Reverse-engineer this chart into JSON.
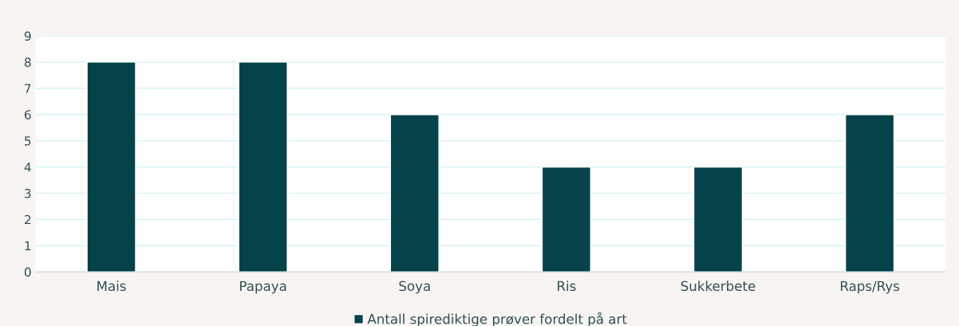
{
  "chart_data": {
    "type": "bar",
    "categories": [
      "Mais",
      "Papaya",
      "Soya",
      "Ris",
      "Sukkerbete",
      "Raps/Rys"
    ],
    "series": [
      {
        "name": "Antall spirediktige prøver fordelt på art",
        "color": "#06424a",
        "values": [
          8,
          8,
          6,
          4,
          4,
          6
        ]
      }
    ],
    "ylim": [
      0,
      9
    ],
    "yticks": [
      0,
      1,
      2,
      3,
      4,
      5,
      6,
      7,
      8,
      9
    ],
    "grid": "y",
    "legend": "bottom"
  }
}
